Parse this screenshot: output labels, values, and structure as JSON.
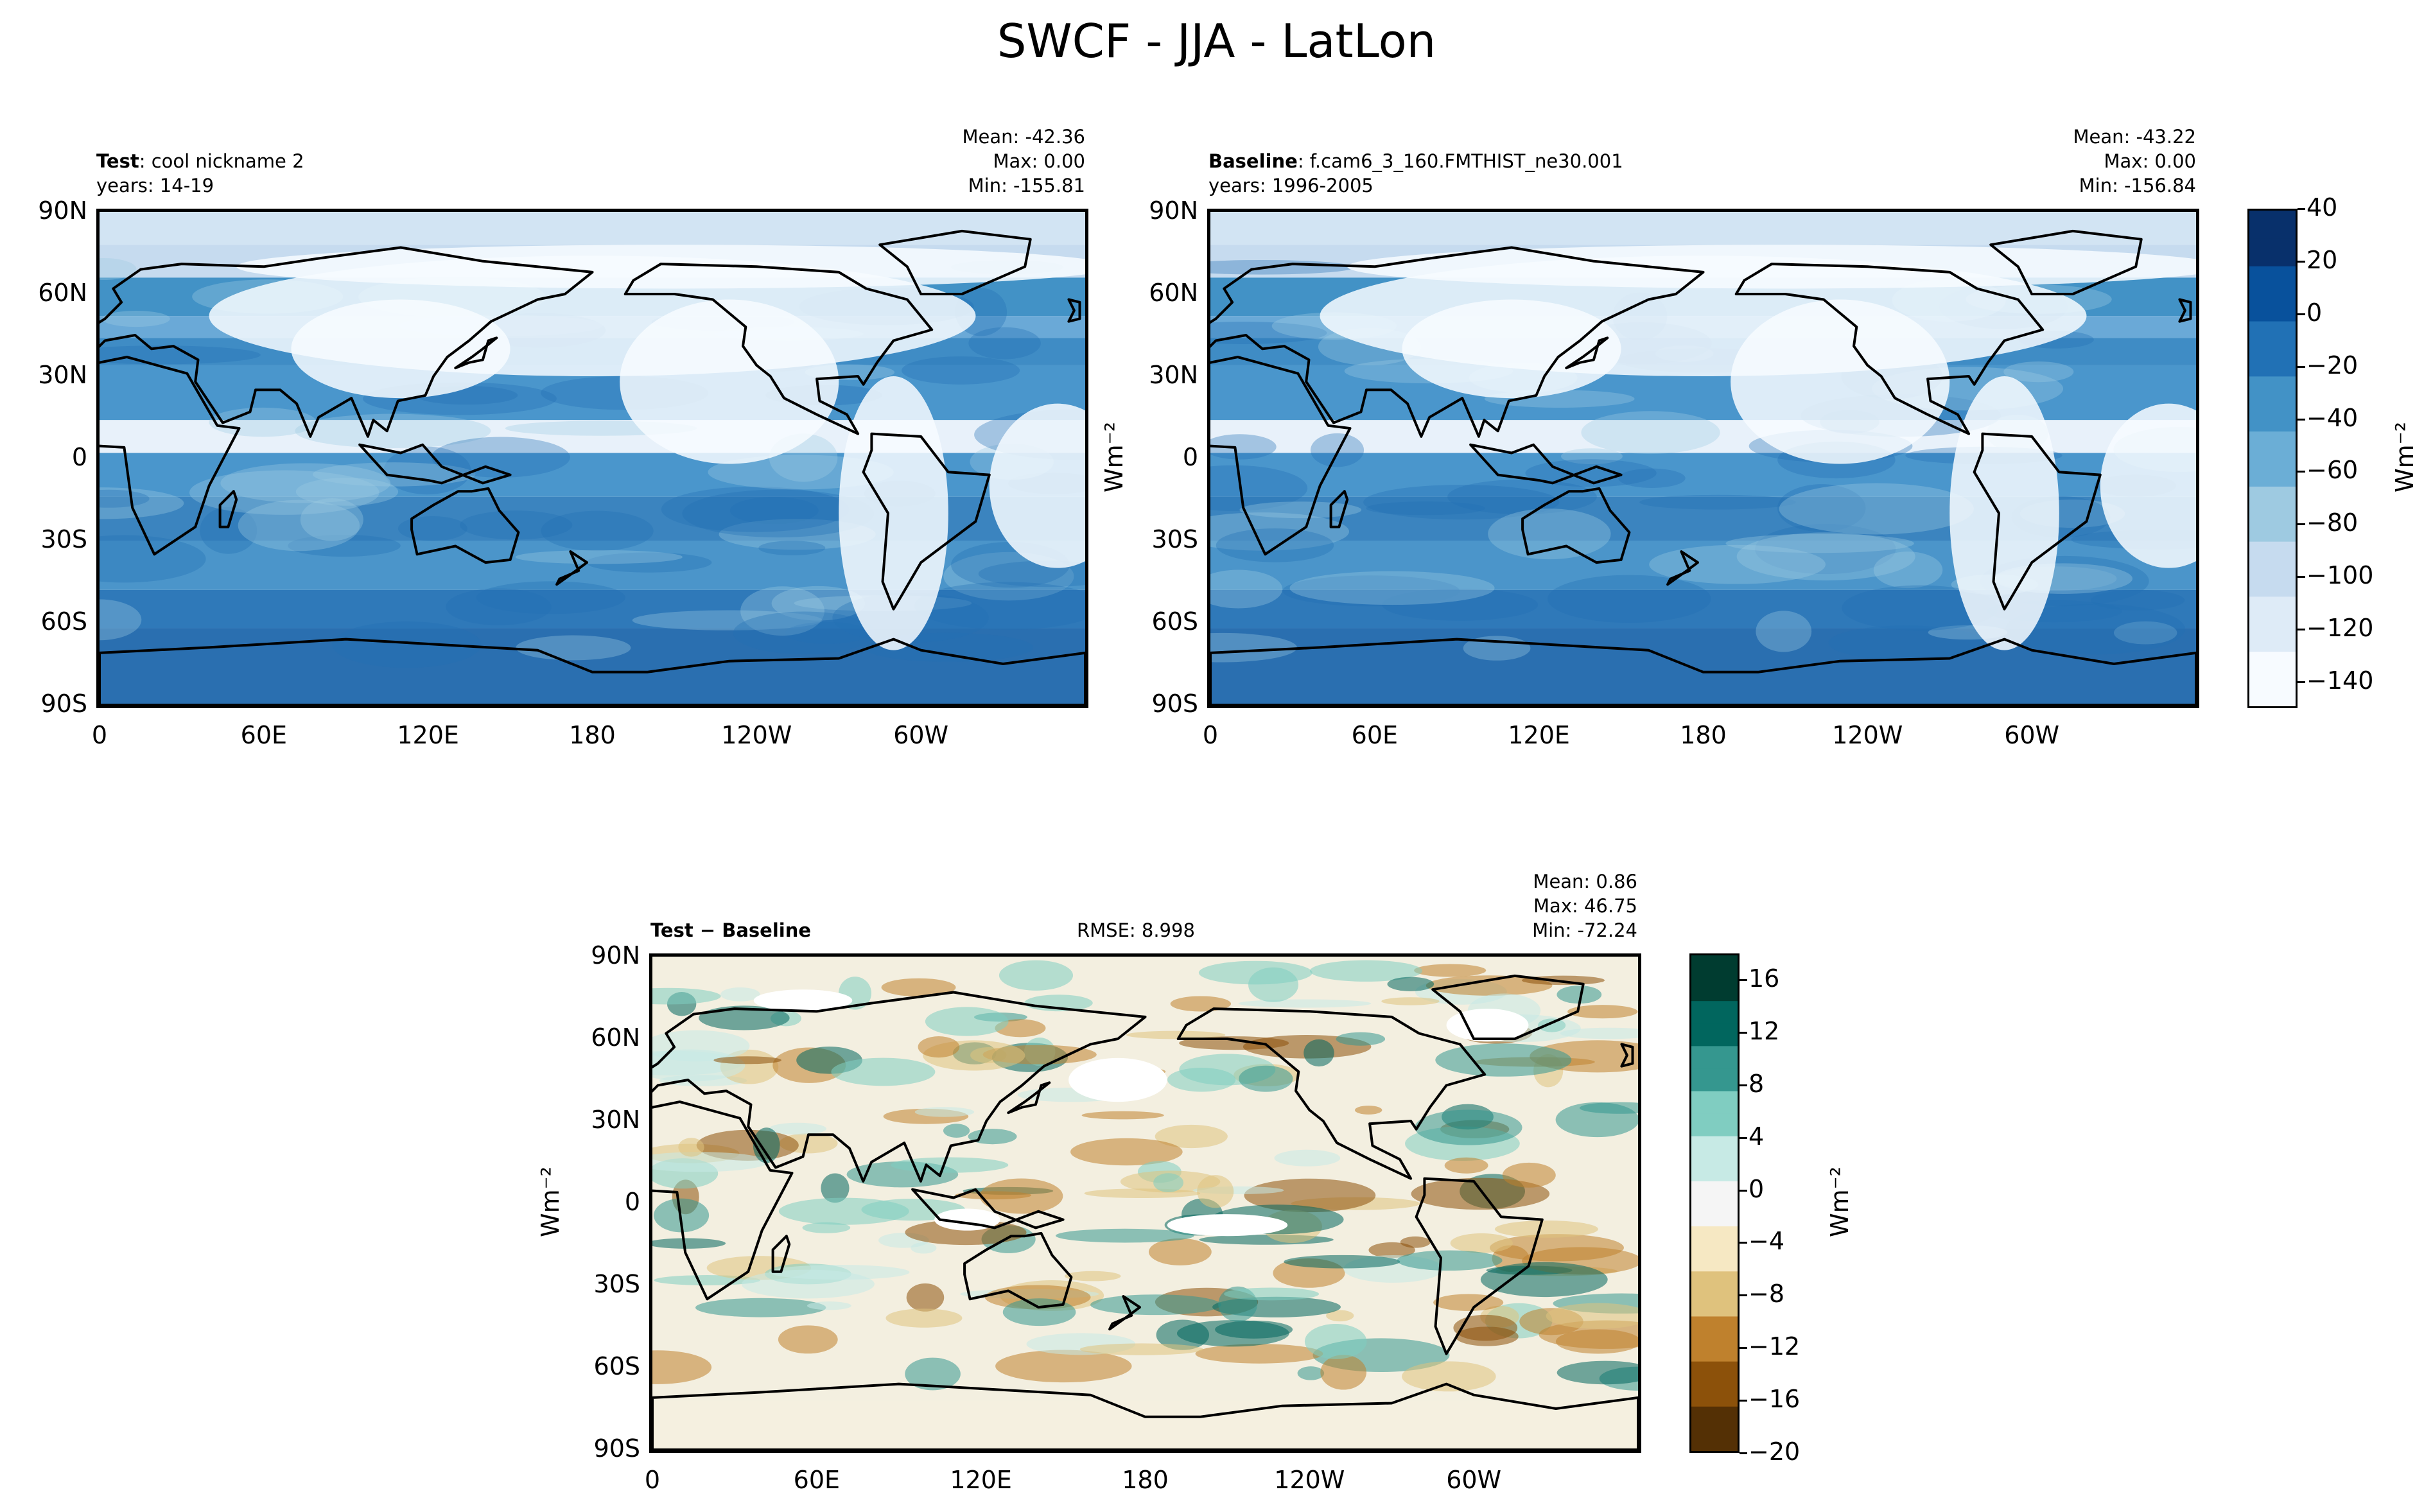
{
  "title": "SWCF - JJA - LatLon",
  "units_label": "Wm⁻²",
  "lat_ticks": [
    "90N",
    "60N",
    "30N",
    "0",
    "30S",
    "60S",
    "90S"
  ],
  "lon_ticks": [
    "0",
    "60E",
    "120E",
    "180",
    "120W",
    "60W"
  ],
  "panels": {
    "test": {
      "label_bold": "Test",
      "label_rest": ": cool nickname 2",
      "years": "years: 14-19",
      "mean": "Mean: -42.36",
      "max": "Max:  0.00",
      "min": "Min: -155.81"
    },
    "baseline": {
      "label_bold": "Baseline",
      "label_rest": ": f.cam6_3_160.FMTHIST_ne30.001",
      "years": "years: 1996-2005",
      "mean": "Mean: -43.22",
      "max": "Max:  0.00",
      "min": "Min: -156.84"
    },
    "diff": {
      "label": "Test − Baseline",
      "rmse": "RMSE: 8.998",
      "mean": "Mean:  0.86",
      "max": "Max: 46.75",
      "min": "Min: -72.24"
    }
  },
  "colorbar_main": {
    "ticks": [
      "40",
      "20",
      "0",
      "−20",
      "−40",
      "−60",
      "−80",
      "−100",
      "−120",
      "−140"
    ],
    "tick_values": [
      40,
      20,
      0,
      -20,
      -40,
      -60,
      -80,
      -100,
      -120,
      -140
    ],
    "range": [
      -150,
      40
    ],
    "colors": [
      "#f7fbff",
      "#deebf7",
      "#c6dbef",
      "#9ecae1",
      "#6baed6",
      "#4292c6",
      "#2171b5",
      "#08519c",
      "#08306b"
    ]
  },
  "colorbar_diff": {
    "ticks": [
      "16",
      "12",
      "8",
      "4",
      "0",
      "−4",
      "−8",
      "−12",
      "−16",
      "−20"
    ],
    "tick_values": [
      16,
      12,
      8,
      4,
      0,
      -4,
      -8,
      -12,
      -16,
      -20
    ],
    "range": [
      -20,
      18
    ],
    "colors": [
      "#543005",
      "#8c510a",
      "#bf812d",
      "#dfc27d",
      "#f6e8c3",
      "#f5f5f5",
      "#c7eae5",
      "#80cdc1",
      "#35978f",
      "#01665e",
      "#003c30"
    ]
  },
  "chart_data": [
    {
      "type": "heatmap",
      "title": "Test: cool nickname 2",
      "subtitle": "years: 14-19",
      "variable": "SWCF",
      "season": "JJA",
      "stats": {
        "mean": -42.36,
        "max": 0.0,
        "min": -155.81
      },
      "xlabel": "",
      "ylabel": "",
      "x_ticks": [
        "0",
        "60E",
        "120E",
        "180",
        "120W",
        "60W"
      ],
      "y_ticks": [
        "90N",
        "60N",
        "30N",
        "0",
        "30S",
        "60S",
        "90S"
      ],
      "colorbar_range": [
        -150,
        40
      ],
      "colormap": "Blues_r"
    },
    {
      "type": "heatmap",
      "title": "Baseline: f.cam6_3_160.FMTHIST_ne30.001",
      "subtitle": "years: 1996-2005",
      "variable": "SWCF",
      "season": "JJA",
      "stats": {
        "mean": -43.22,
        "max": 0.0,
        "min": -156.84
      },
      "x_ticks": [
        "0",
        "60E",
        "120E",
        "180",
        "120W",
        "60W"
      ],
      "y_ticks": [
        "90N",
        "60N",
        "30N",
        "0",
        "30S",
        "60S",
        "90S"
      ],
      "colorbar_range": [
        -150,
        40
      ],
      "colormap": "Blues_r"
    },
    {
      "type": "heatmap",
      "title": "Test − Baseline",
      "rmse": 8.998,
      "stats": {
        "mean": 0.86,
        "max": 46.75,
        "min": -72.24
      },
      "x_ticks": [
        "0",
        "60E",
        "120E",
        "180",
        "120W",
        "60W"
      ],
      "y_ticks": [
        "90N",
        "60N",
        "30N",
        "0",
        "30S",
        "60S",
        "90S"
      ],
      "colorbar_range": [
        -20,
        18
      ],
      "colormap": "BrBG"
    }
  ]
}
